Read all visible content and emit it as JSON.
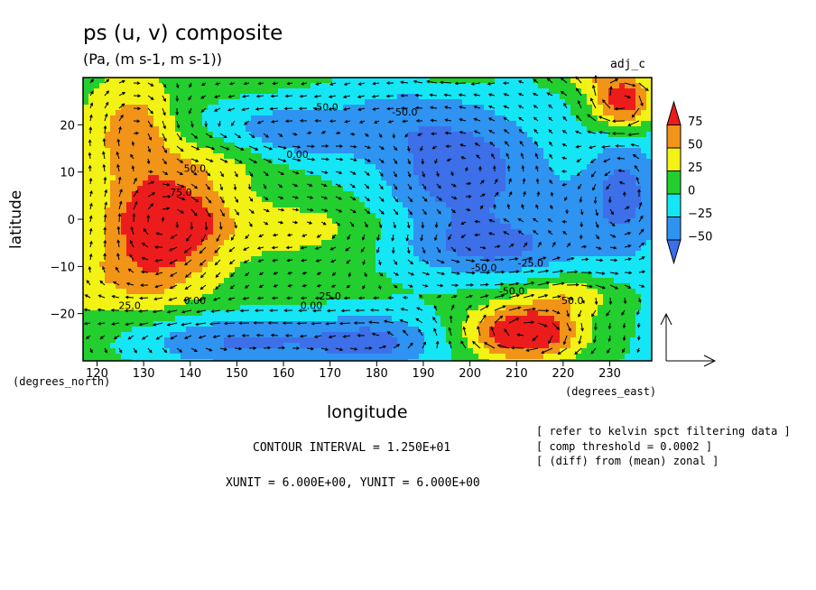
{
  "title": "ps (u, v) composite",
  "subtitle": "(Pa, (m s-1, m s-1))",
  "panel_tag": "adj_c",
  "x_units_left": "(degrees_north)",
  "x_units_right": "(degrees_east)",
  "contour_interval": "CONTOUR INTERVAL = 1.250E+01",
  "xy_unit": "XUNIT = 6.000E+00, YUNIT = 6.000E+00",
  "notes": [
    "[ refer to kelvin spct filtering data ]",
    "[ comp threshold = 0.0002 ]",
    "[ (diff) from (mean) zonal ]"
  ],
  "colors": {
    "c_lt_-50": "#3c6fe8",
    "c_-50_-25": "#2f93f1",
    "c_-25_0": "#15e6f5",
    "c_0_25": "#22cf2e",
    "c_25_50": "#f2f214",
    "c_50_75": "#f19418",
    "c_gt_75": "#ec1c1c"
  },
  "chart_data": {
    "type": "heatmap",
    "title": "ps (u, v) composite",
    "xlabel": "longitude",
    "ylabel": "latitude",
    "xlim": [
      117,
      239
    ],
    "ylim": [
      -30,
      30
    ],
    "x_ticks": [
      120,
      130,
      140,
      150,
      160,
      170,
      180,
      190,
      200,
      210,
      220,
      230
    ],
    "x_tick_labels": [
      "120",
      "130",
      "140",
      "150",
      "160",
      "170",
      "180",
      "190",
      "200",
      "210",
      "220",
      "230"
    ],
    "y_ticks": [
      20,
      10,
      0,
      -10,
      -20
    ],
    "y_tick_labels": [
      "20",
      "10",
      "0",
      "−10",
      "−20"
    ],
    "colorbar": {
      "levels": [
        75,
        50,
        25,
        0,
        -25,
        -50
      ],
      "labels": [
        "75",
        "50",
        "25",
        "0",
        "−25",
        "−50"
      ]
    },
    "contour_labels": [
      {
        "text": "50.0",
        "lon": 141,
        "lat": 10
      },
      {
        "text": "75.0",
        "lon": 138,
        "lat": 5
      },
      {
        "text": "0.00",
        "lon": 163,
        "lat": 13
      },
      {
        "text": "-50.0",
        "lon": 169,
        "lat": 23
      },
      {
        "text": "-50.0",
        "lon": 186,
        "lat": 22
      },
      {
        "text": "0.00",
        "lon": 141,
        "lat": -18
      },
      {
        "text": "25.0",
        "lon": 127,
        "lat": -19
      },
      {
        "text": "25.0",
        "lon": 170,
        "lat": -17
      },
      {
        "text": "0.00",
        "lon": 166,
        "lat": -19
      },
      {
        "text": "-50.0",
        "lon": 203,
        "lat": -11
      },
      {
        "text": "-25.0",
        "lon": 213,
        "lat": -10
      },
      {
        "text": "50.0",
        "lon": 222,
        "lat": -18
      },
      {
        "text": "-50.0",
        "lon": 209,
        "lat": -16
      }
    ]
  }
}
